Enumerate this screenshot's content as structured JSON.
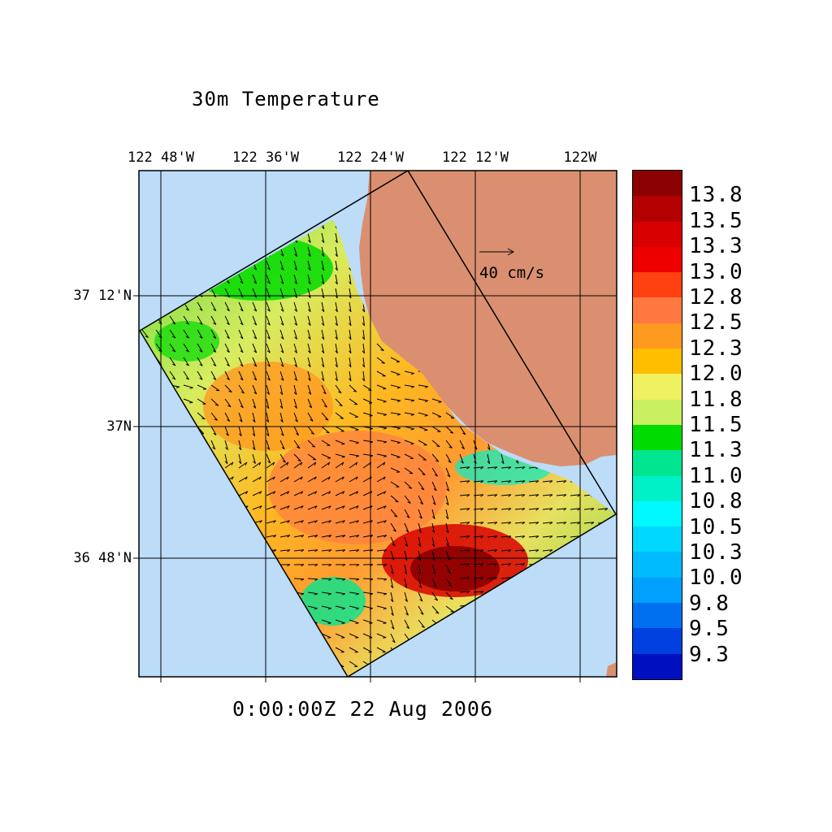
{
  "title": "30m Temperature",
  "timestamp": "0:00:00Z  22 Aug 2006",
  "longitude_labels": [
    "122 48'W",
    "122 36'W",
    "122 24'W",
    "122 12'W",
    "122W"
  ],
  "latitude_labels": [
    "37 12'N",
    "37N",
    "36 48'N"
  ],
  "vector_scale_label": "40 cm/s",
  "colorbar": {
    "labels": [
      "13.8",
      "13.5",
      "13.3",
      "13.0",
      "12.8",
      "12.5",
      "12.3",
      "12.0",
      "11.8",
      "11.5",
      "11.3",
      "11.0",
      "10.8",
      "10.5",
      "10.3",
      "10.0",
      "9.8",
      "9.5",
      "9.3"
    ],
    "colors": [
      "#8b0000",
      "#b40000",
      "#d80000",
      "#ee0000",
      "#ff4010",
      "#ff7840",
      "#ff9a20",
      "#ffbe00",
      "#f0f060",
      "#c8f060",
      "#00dc00",
      "#00e690",
      "#00f0c8",
      "#00f8ff",
      "#00d8ff",
      "#00bcff",
      "#00a0ff",
      "#0070f0",
      "#0040e0",
      "#0010c0"
    ]
  },
  "colors": {
    "ocean": "#bcdcf8",
    "land": "#da9070",
    "frame": "#000000"
  }
}
